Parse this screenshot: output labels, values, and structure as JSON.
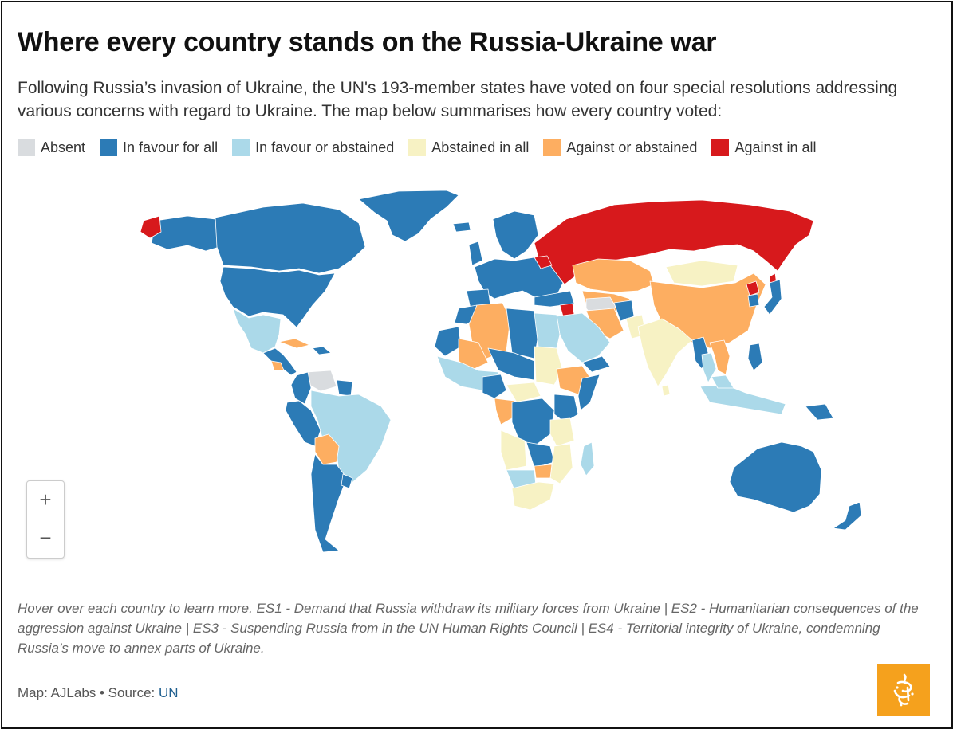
{
  "header": {
    "title": "Where every country stands on the Russia-Ukraine war",
    "subtitle": "Following Russia’s invasion of Ukraine, the UN's 193-member states have voted on four special resolutions addressing various concerns with regard to Ukraine. The map below summarises how every country voted:"
  },
  "legend": [
    {
      "label": "Absent",
      "color": "#d9dcdf"
    },
    {
      "label": "In favour for all",
      "color": "#2c7bb6"
    },
    {
      "label": "In favour or abstained",
      "color": "#abd9e9"
    },
    {
      "label": "Abstained in all",
      "color": "#f7f2c4"
    },
    {
      "label": "Against or abstained",
      "color": "#fdae61"
    },
    {
      "label": "Against in all",
      "color": "#d7191c"
    }
  ],
  "zoom": {
    "plus": "+",
    "minus": "−"
  },
  "notes": "Hover over each country to learn more. ES1 - Demand that Russia withdraw its military forces from Ukraine | ES2 - Humanitarian consequences of the aggression against Ukraine | ES3 - Suspending Russia from in the UN Human Rights Council | ES4 - Territorial integrity of Ukraine, condemning Russia’s move to annex parts of Ukraine.",
  "source": {
    "prefix": "Map: AJLabs • Source: ",
    "link": "UN"
  },
  "icons": {
    "logo": "al-jazeera-logo-icon"
  }
}
